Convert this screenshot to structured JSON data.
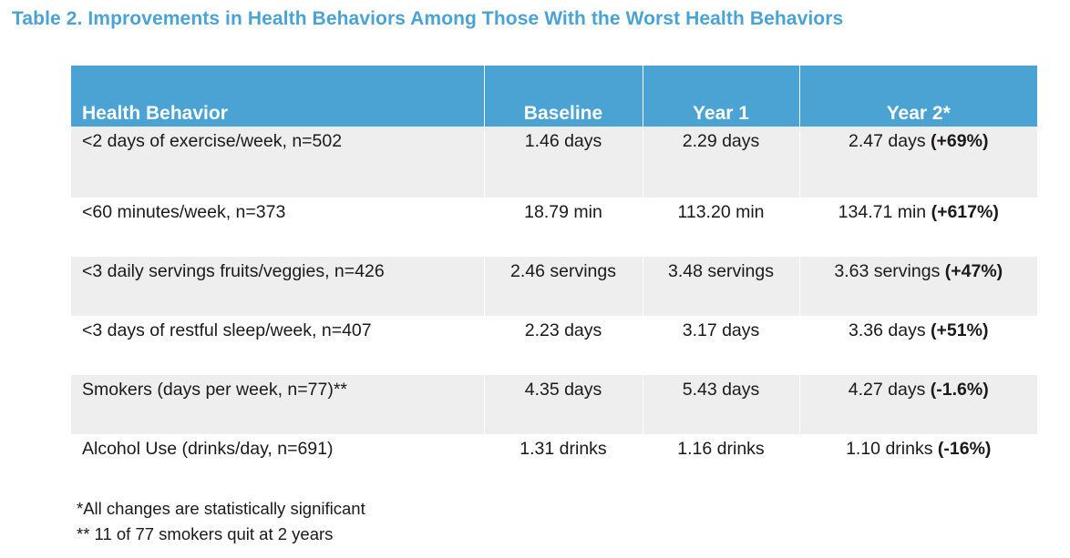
{
  "title": "Table 2. Improvements in Health Behaviors Among Those With the Worst Health Behaviors",
  "colors": {
    "title": "#4aa3d2",
    "header_bg": "#4aa3d2",
    "header_text": "#ffffff",
    "row_shade": "#eeeeef"
  },
  "table": {
    "headers": {
      "behavior": "Health Behavior",
      "baseline": "Baseline",
      "year1": "Year 1",
      "year2": "Year 2*"
    },
    "rows": [
      {
        "behavior": "<2 days of exercise/week, n=502",
        "baseline": "1.46 days",
        "year1": "2.29 days",
        "year2_value": "2.47 days",
        "year2_change": "(+69%)"
      },
      {
        "behavior": "<60 minutes/week, n=373",
        "baseline": "18.79 min",
        "year1": "113.20 min",
        "year2_value": "134.71 min",
        "year2_change": "(+617%)"
      },
      {
        "behavior": "<3 daily servings fruits/veggies, n=426",
        "baseline": "2.46 servings",
        "year1": "3.48 servings",
        "year2_value": "3.63 servings",
        "year2_change": "(+47%)"
      },
      {
        "behavior": "<3 days of restful sleep/week, n=407",
        "baseline": "2.23 days",
        "year1": "3.17 days",
        "year2_value": "3.36 days",
        "year2_change": "(+51%)"
      },
      {
        "behavior": "Smokers (days per week, n=77)**",
        "baseline": "4.35 days",
        "year1": "5.43 days",
        "year2_value": "4.27 days",
        "year2_change": "(-1.6%)"
      },
      {
        "behavior": "Alcohol Use (drinks/day, n=691)",
        "baseline": "1.31 drinks",
        "year1": "1.16 drinks",
        "year2_value": "1.10 drinks",
        "year2_change": "(-16%)"
      }
    ]
  },
  "footnotes": [
    "*All changes are statistically significant",
    "** 11 of 77 smokers quit at 2 years"
  ]
}
